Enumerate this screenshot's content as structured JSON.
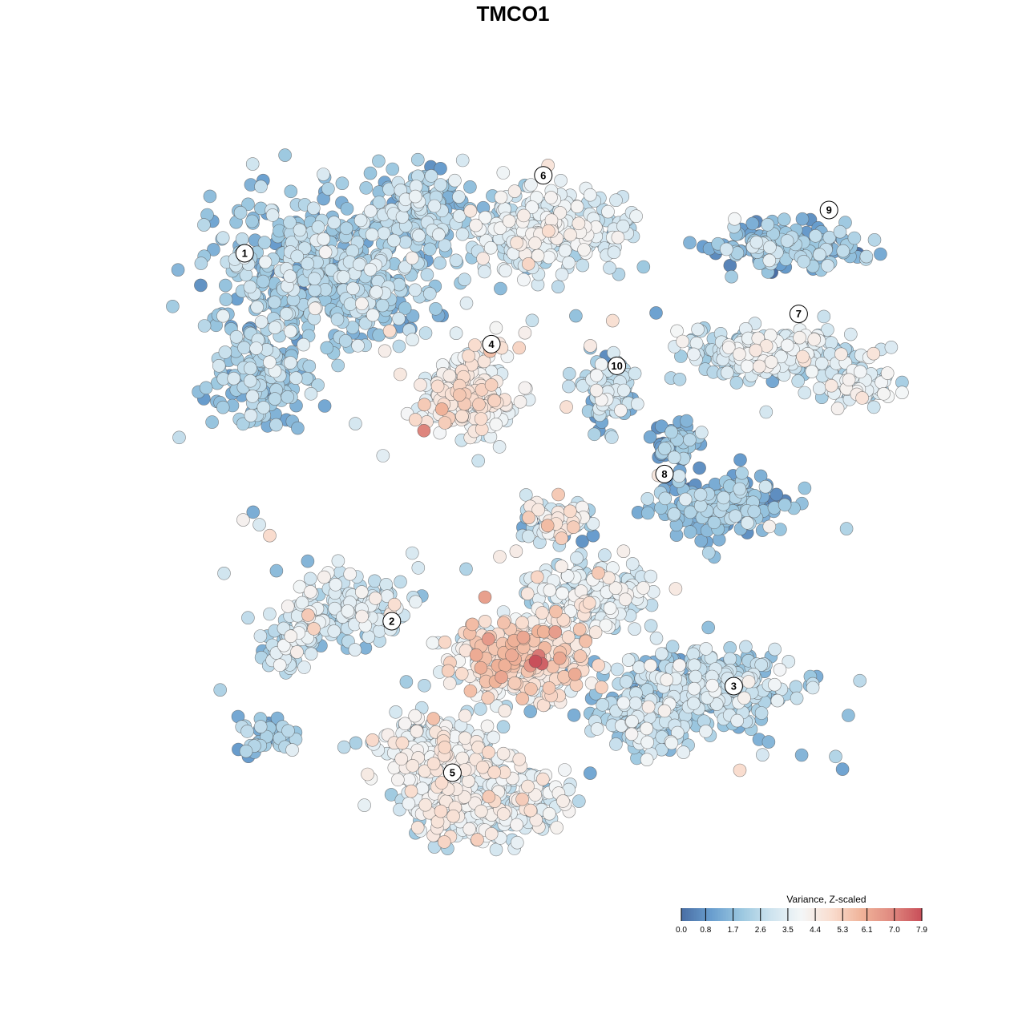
{
  "chart_data": {
    "type": "scatter",
    "title": "TMCO1",
    "xlabel": "",
    "ylabel": "",
    "grid": false,
    "legend": {
      "title": "Variance, Z-scaled",
      "placement": "bottom-right",
      "ticks": [
        "0.0",
        "0.8",
        "1.7",
        "2.6",
        "3.5",
        "4.4",
        "5.3",
        "6.1",
        "7.0",
        "7.9"
      ],
      "range": [
        0.0,
        7.9
      ],
      "colors": [
        "#4a6fa5",
        "#6a9fcf",
        "#9cc8e0",
        "#cfe4ef",
        "#f4f6f7",
        "#f9ddcf",
        "#f0b49a",
        "#e08a80",
        "#c9505a"
      ]
    },
    "clusters": [
      {
        "label": "1",
        "x": -0.62,
        "y": 0.6,
        "mean_value": 2.1
      },
      {
        "label": "2",
        "x": -0.28,
        "y": -0.25,
        "mean_value": 2.9
      },
      {
        "label": "3",
        "x": 0.51,
        "y": -0.4,
        "mean_value": 2.4
      },
      {
        "label": "4",
        "x": -0.05,
        "y": 0.39,
        "mean_value": 4.0
      },
      {
        "label": "5",
        "x": -0.14,
        "y": -0.6,
        "mean_value": 3.6
      },
      {
        "label": "6",
        "x": 0.07,
        "y": 0.78,
        "mean_value": 3.2
      },
      {
        "label": "7",
        "x": 0.66,
        "y": 0.46,
        "mean_value": 3.0
      },
      {
        "label": "8",
        "x": 0.35,
        "y": 0.09,
        "mean_value": 1.6
      },
      {
        "label": "9",
        "x": 0.73,
        "y": 0.7,
        "mean_value": 1.7
      },
      {
        "label": "10",
        "x": 0.24,
        "y": 0.34,
        "mean_value": 2.5
      }
    ]
  }
}
